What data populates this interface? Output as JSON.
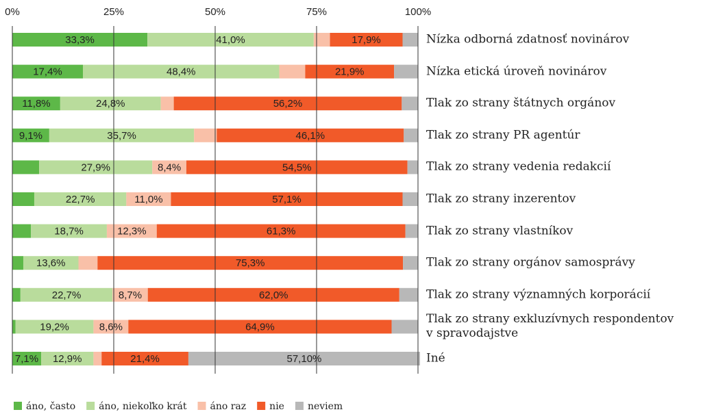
{
  "chart_data": {
    "type": "stacked_bar_horizontal",
    "categories": [
      "Nízka odborná zdatnosť novinárov",
      "Nízka etická úroveň novinárov",
      "Tlak zo strany štátnych orgánov",
      "Tlak zo strany PR agentúr",
      "Tlak zo strany vedenia redakcií",
      "Tlak zo strany inzerentov",
      "Tlak zo strany vlastníkov",
      "Tlak zo strany orgánov samosprávy",
      "Tlak zo strany významných korporácií",
      "Tlak zo strany exkluzívnych respondentov\nv spravodajstve",
      "Iné"
    ],
    "series": [
      {
        "name": "áno, často",
        "color": "#5db848",
        "values": [
          33.3,
          17.4,
          11.8,
          9.1,
          6.6,
          5.4,
          4.6,
          2.7,
          2.0,
          0.8,
          7.1
        ],
        "value_labels": [
          "33,3%",
          "17,4%",
          "11,8%",
          "9,1%",
          null,
          null,
          null,
          null,
          null,
          null,
          "7,1%"
        ]
      },
      {
        "name": "áno, niekoľko krát",
        "color": "#b9dc9c",
        "values": [
          41.0,
          48.4,
          24.8,
          35.7,
          27.9,
          22.7,
          18.7,
          13.6,
          22.7,
          19.2,
          12.9
        ],
        "value_labels": [
          "41,0%",
          "48,4%",
          "24,8%",
          "35,7%",
          "27,9%",
          "22,7%",
          "18,7%",
          "13,6%",
          "22,7%",
          "19,2%",
          "12,9%"
        ]
      },
      {
        "name": "áno raz",
        "color": "#f9c0a8",
        "values": [
          4.0,
          6.4,
          3.2,
          5.6,
          8.4,
          11.0,
          12.3,
          4.7,
          8.7,
          8.6,
          2.0
        ],
        "value_labels": [
          null,
          null,
          null,
          null,
          "8,4%",
          "11,0%",
          "12,3%",
          null,
          "8,7%",
          "8,6%",
          null
        ]
      },
      {
        "name": "nie",
        "color": "#f15a29",
        "values": [
          17.9,
          21.9,
          56.2,
          46.1,
          54.5,
          57.1,
          61.3,
          75.3,
          62.0,
          64.9,
          21.4
        ],
        "value_labels": [
          "17,9%",
          "21,9%",
          "56,2%",
          "46,1%",
          "54,5%",
          "57,1%",
          "61,3%",
          "75,3%",
          "62,0%",
          "64,9%",
          "21,4%"
        ]
      },
      {
        "name": "neviem",
        "color": "#b8b8b8",
        "values": [
          3.8,
          5.9,
          4.0,
          3.5,
          2.6,
          3.8,
          3.1,
          3.7,
          4.6,
          6.5,
          57.1
        ],
        "value_labels": [
          null,
          null,
          null,
          null,
          null,
          null,
          null,
          null,
          null,
          null,
          "57,10%"
        ]
      }
    ],
    "xlim": [
      0,
      100
    ],
    "xticks": [
      {
        "value": 0,
        "label": "0%"
      },
      {
        "value": 25,
        "label": "25%"
      },
      {
        "value": 50,
        "label": "50%"
      },
      {
        "value": 75,
        "label": "75%"
      },
      {
        "value": 100,
        "label": "100%"
      }
    ],
    "grid": true,
    "legend": "bottom"
  }
}
